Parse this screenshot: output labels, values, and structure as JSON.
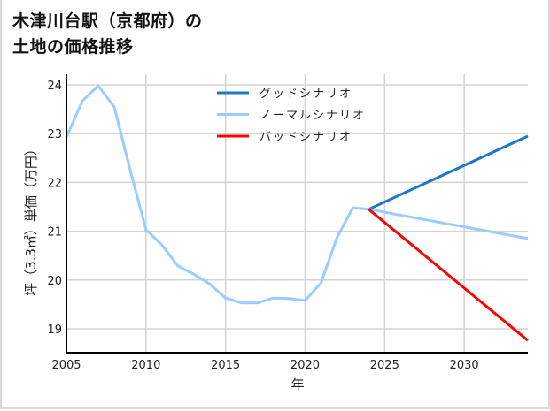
{
  "title": "木津川台駅（京都府）の\n土地の価格推移",
  "chart_data": {
    "type": "line",
    "title": "木津川台駅（京都府）の土地の価格推移",
    "xlabel": "年",
    "ylabel": "坪（3.3㎡）単価（万円）",
    "xlim": [
      2005,
      2034
    ],
    "ylim": [
      18.5,
      24.2
    ],
    "x_ticks": [
      2005,
      2010,
      2015,
      2020,
      2025,
      2030
    ],
    "y_ticks": [
      19,
      20,
      21,
      22,
      23,
      24
    ],
    "grid": true,
    "legend_position": "upper center",
    "series": [
      {
        "name": "グッドシナリオ",
        "color": "#1f77c8",
        "x": [
          2024,
          2034
        ],
        "values": [
          21.45,
          22.95
        ]
      },
      {
        "name": "ノーマルシナリオ",
        "color": "#99ccff",
        "x": [
          2005,
          2006,
          2007,
          2008,
          2009,
          2010,
          2011,
          2012,
          2013,
          2014,
          2015,
          2016,
          2017,
          2018,
          2019,
          2020,
          2021,
          2022,
          2023,
          2024,
          2034
        ],
        "values": [
          22.93,
          23.67,
          23.98,
          23.55,
          22.26,
          21.03,
          20.72,
          20.29,
          20.12,
          19.92,
          19.63,
          19.53,
          19.53,
          19.63,
          19.62,
          19.58,
          19.94,
          20.87,
          21.48,
          21.45,
          20.85
        ]
      },
      {
        "name": "バッドシナリオ",
        "color": "#ff0000",
        "x": [
          2024,
          2034
        ],
        "values": [
          21.45,
          18.76
        ]
      }
    ]
  }
}
